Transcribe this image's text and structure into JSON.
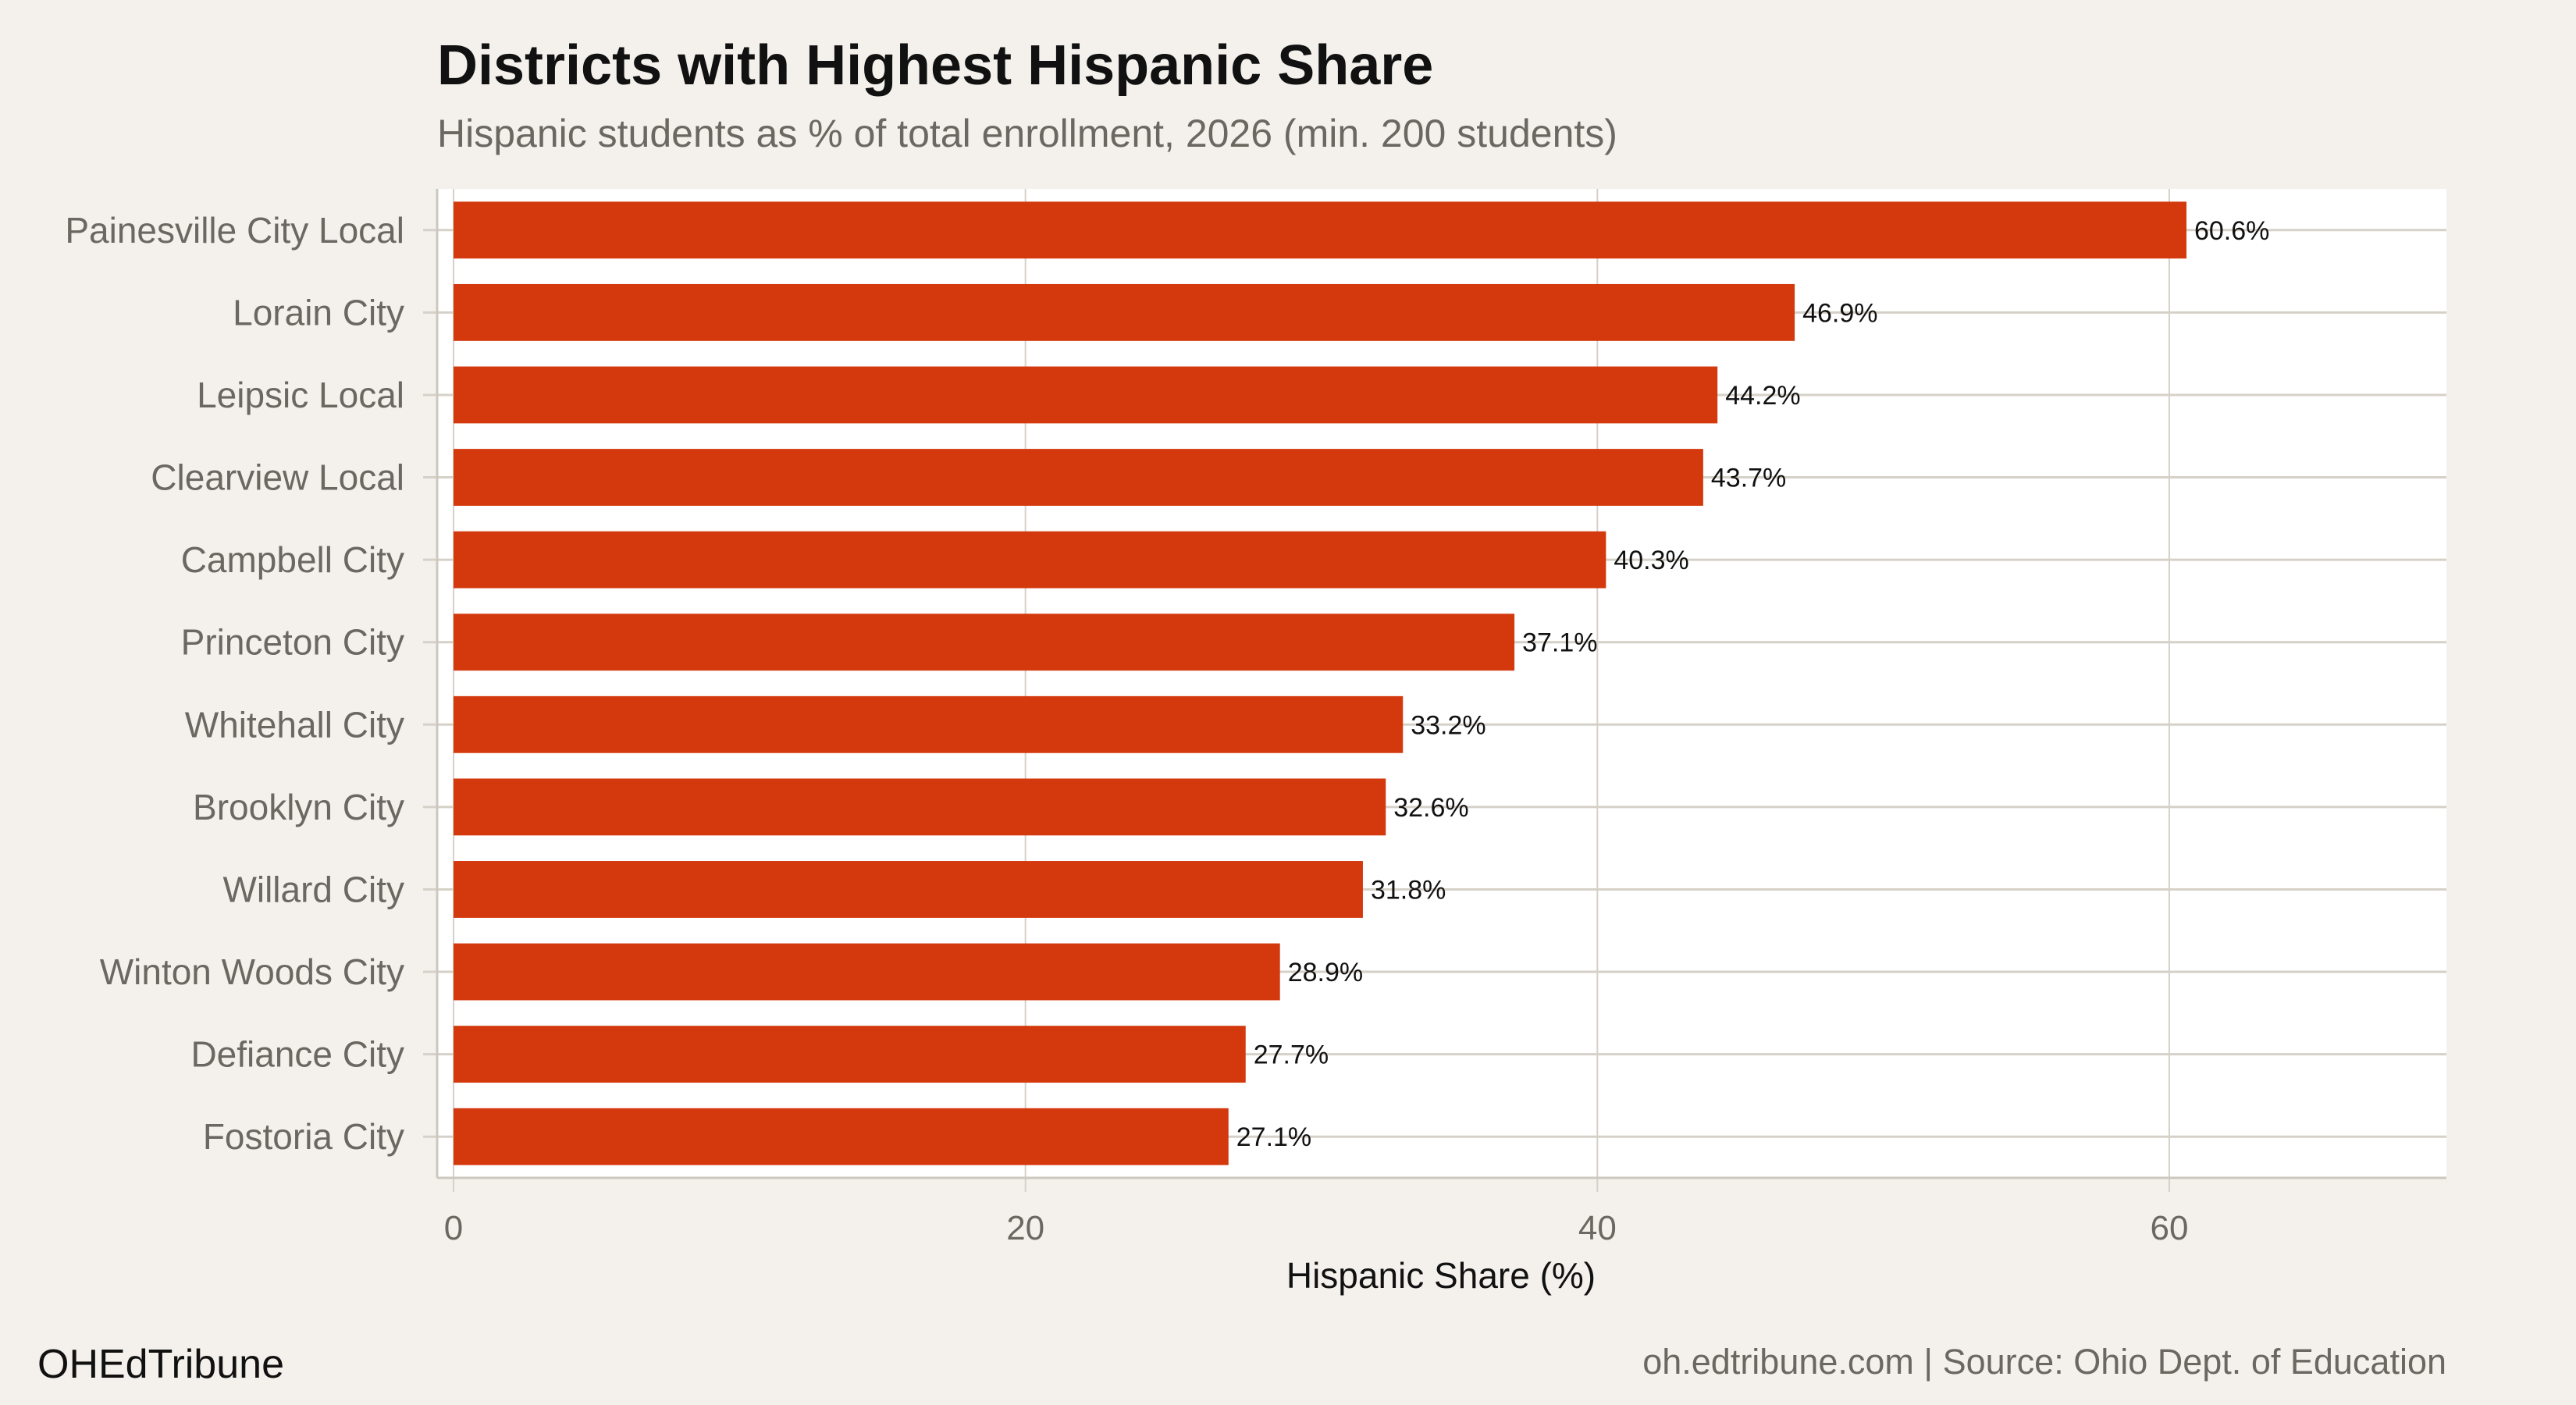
{
  "chart_data": {
    "type": "bar",
    "orientation": "horizontal",
    "title": "Districts with Highest Hispanic Share",
    "subtitle": "Hispanic students as % of total enrollment, 2026 (min. 200 students)",
    "xlabel": "Hispanic Share (%)",
    "ylabel": "",
    "xlim": [
      0,
      70
    ],
    "xticks": [
      0,
      20,
      40,
      60
    ],
    "grid": true,
    "bar_color": "#d4380d",
    "categories": [
      "Painesville City Local",
      "Lorain City",
      "Leipsic Local",
      "Clearview Local",
      "Campbell City",
      "Princeton City",
      "Whitehall City",
      "Brooklyn City",
      "Willard City",
      "Winton Woods City",
      "Defiance City",
      "Fostoria City"
    ],
    "values": [
      60.6,
      46.9,
      44.2,
      43.7,
      40.3,
      37.1,
      33.2,
      32.6,
      31.8,
      28.9,
      27.7,
      27.1
    ],
    "data_labels": [
      "60.6%",
      "46.9%",
      "44.2%",
      "43.7%",
      "40.3%",
      "37.1%",
      "33.2%",
      "32.6%",
      "31.8%",
      "28.9%",
      "27.7%",
      "27.1%"
    ]
  },
  "footer": {
    "brand": "OHEdTribune",
    "source": "oh.edtribune.com | Source: Ohio Dept. of Education"
  }
}
